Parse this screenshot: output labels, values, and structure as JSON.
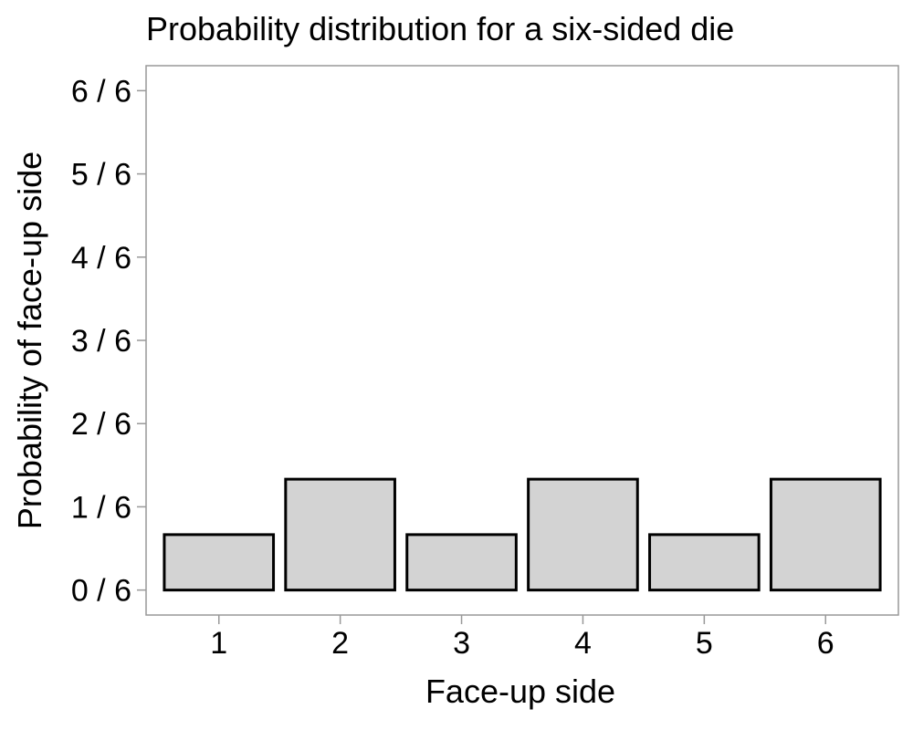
{
  "chart_data": {
    "type": "bar",
    "title": "Probability distribution for a six-sided die",
    "xlabel": "Face-up side",
    "ylabel": "Probability of face-up side",
    "categories": [
      "1",
      "2",
      "3",
      "4",
      "5",
      "6"
    ],
    "values": [
      0.111,
      0.222,
      0.111,
      0.222,
      0.111,
      0.222
    ],
    "yticks": [
      0,
      0.1667,
      0.3333,
      0.5,
      0.6667,
      0.8333,
      1
    ],
    "ytick_labels": [
      "0 / 6",
      "1 / 6",
      "2 / 6",
      "3 / 6",
      "4 / 6",
      "5 / 6",
      "6 / 6"
    ],
    "ylim": [
      -0.05,
      1.05
    ],
    "bar_fill": "#d3d3d3",
    "bar_stroke": "#000000",
    "frame_color": "#999999",
    "grid": false
  }
}
